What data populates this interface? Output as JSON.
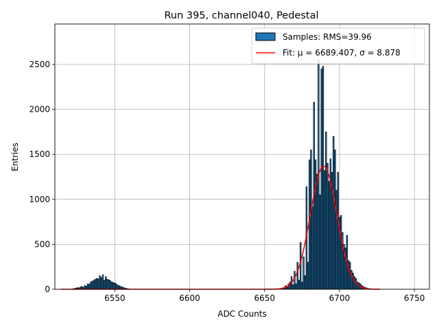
{
  "chart_data": {
    "type": "bar",
    "title": "Run 395, channel040, Pedestal",
    "xlabel": "ADC Counts",
    "ylabel": "Entries",
    "xlim": [
      6510,
      6760
    ],
    "ylim": [
      0,
      2950
    ],
    "xticks": [
      6550,
      6600,
      6650,
      6700,
      6750
    ],
    "yticks": [
      0,
      500,
      1000,
      1500,
      2000,
      2500
    ],
    "grid": true,
    "legend_position": "top-right",
    "colors": {
      "bar_fill": "#1f77b4",
      "bar_edge": "#000000",
      "fit_line": "#ff0000",
      "grid": "#b0b0b0"
    },
    "legend": {
      "samples_label": "Samples: RMS=39.96",
      "fit_label": "Fit: μ = 6689.407, σ = 8.878"
    },
    "bars": {
      "x": [
        6522,
        6523,
        6524,
        6525,
        6526,
        6527,
        6528,
        6529,
        6530,
        6531,
        6532,
        6533,
        6534,
        6535,
        6536,
        6537,
        6538,
        6539,
        6540,
        6541,
        6542,
        6543,
        6544,
        6545,
        6546,
        6547,
        6548,
        6549,
        6550,
        6551,
        6552,
        6553,
        6554,
        6555,
        6556,
        6557,
        6558,
        6559,
        6660,
        6661,
        6662,
        6663,
        6664,
        6665,
        6666,
        6667,
        6668,
        6669,
        6670,
        6671,
        6672,
        6673,
        6674,
        6675,
        6676,
        6677,
        6678,
        6679,
        6680,
        6681,
        6682,
        6683,
        6684,
        6685,
        6686,
        6687,
        6688,
        6689,
        6690,
        6691,
        6692,
        6693,
        6694,
        6695,
        6696,
        6697,
        6698,
        6699,
        6700,
        6701,
        6702,
        6703,
        6704,
        6705,
        6706,
        6707,
        6708,
        6709,
        6710,
        6711,
        6712,
        6713,
        6714,
        6715,
        6716,
        6717,
        6718,
        6719,
        6720,
        6721
      ],
      "values": [
        5,
        8,
        12,
        18,
        15,
        25,
        30,
        22,
        40,
        35,
        60,
        55,
        80,
        90,
        100,
        110,
        120,
        115,
        150,
        130,
        160,
        100,
        140,
        110,
        105,
        95,
        80,
        75,
        70,
        60,
        45,
        38,
        30,
        25,
        18,
        12,
        8,
        5,
        3,
        5,
        10,
        20,
        40,
        20,
        60,
        80,
        140,
        50,
        200,
        60,
        300,
        100,
        520,
        80,
        360,
        150,
        1140,
        300,
        1440,
        1550,
        920,
        2080,
        1440,
        1280,
        2550,
        1050,
        2450,
        2480,
        1320,
        1750,
        1400,
        1200,
        1450,
        1300,
        1700,
        1550,
        1100,
        1300,
        800,
        820,
        630,
        500,
        460,
        600,
        320,
        300,
        210,
        180,
        140,
        120,
        80,
        70,
        60,
        40,
        30,
        20,
        15,
        10,
        6,
        3
      ]
    },
    "fit": {
      "mu": 6689.407,
      "sigma": 8.878,
      "amplitude": 1370,
      "x_range": [
        6514,
        6727
      ]
    }
  }
}
